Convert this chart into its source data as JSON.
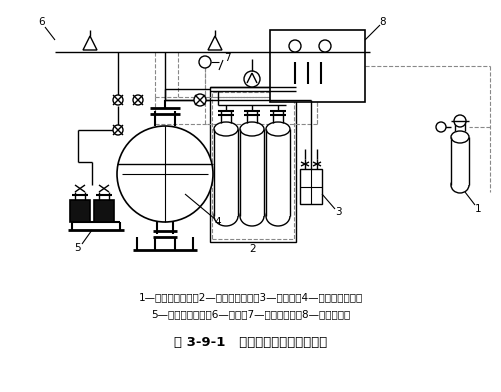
{
  "title": "图 3-9-1   干粉灭火系统组成示意图",
  "caption_line1": "1—启动气体储瓶；2—驱动气体储瓶；3—减压阀；4—干粉储存容器；",
  "caption_line2": "5—干粉枪及卷盘；6—喷嘴；7—火灾探测器；8—控制装置。",
  "line_color": "#000000",
  "bg_color": "#ffffff",
  "dashed_color": "#888888"
}
